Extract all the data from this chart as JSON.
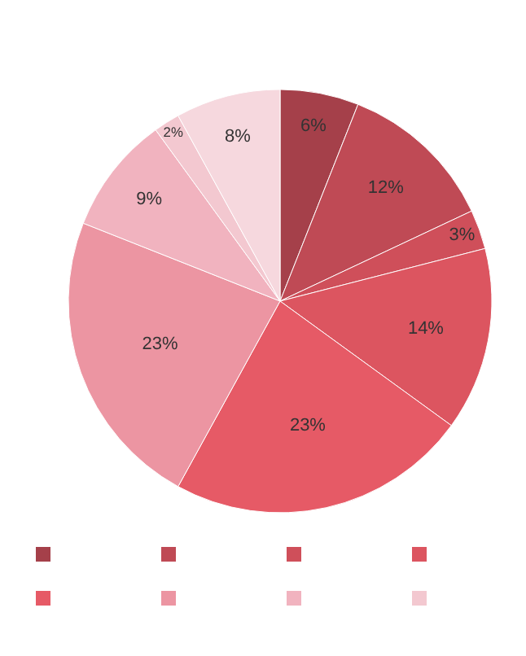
{
  "chart_data": {
    "type": "pie",
    "categories": [
      null,
      null,
      null,
      null,
      null,
      null,
      null,
      null,
      null
    ],
    "values": [
      6,
      12,
      3,
      14,
      23,
      23,
      9,
      2,
      8
    ],
    "value_labels": [
      "6%",
      "12%",
      "3%",
      "14%",
      "23%",
      "23%",
      "9%",
      "2%",
      "8%"
    ],
    "colors": [
      "#a5404a",
      "#bf4a55",
      "#cf4f5a",
      "#dc5560",
      "#e65a66",
      "#ec95a2",
      "#f1b3bf",
      "#f3c8d0",
      "#f6d8de"
    ]
  }
}
